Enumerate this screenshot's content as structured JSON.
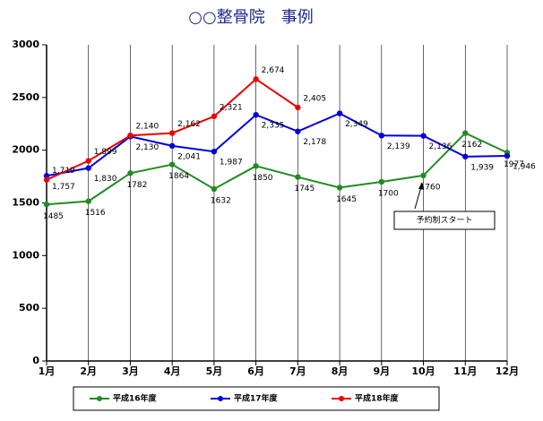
{
  "chart_data": {
    "type": "line",
    "title": "○○整骨院　事例",
    "categories": [
      "1月",
      "2月",
      "3月",
      "4月",
      "5月",
      "6月",
      "7月",
      "8月",
      "9月",
      "10月",
      "11月",
      "12月"
    ],
    "series": [
      {
        "name": "平成16年度",
        "color": "#228b22",
        "values": [
          1485,
          1516,
          1782,
          1864,
          1632,
          1850,
          1745,
          1645,
          1700,
          1760,
          2162,
          1977
        ]
      },
      {
        "name": "平成17年度",
        "color": "#0000dd",
        "values": [
          1757,
          1830,
          2130,
          2041,
          1987,
          2335,
          2178,
          2349,
          2139,
          2136,
          1939,
          1946
        ],
        "value_labels": [
          "1,757",
          "1,830",
          "2,130",
          "2,041",
          "1,987",
          "2,335",
          "2,178",
          "2,349",
          "2,139",
          "2,136",
          "1,939",
          "1,946"
        ]
      },
      {
        "name": "平成18年度",
        "color": "#ee0000",
        "values": [
          1719,
          1899,
          2140,
          2162,
          2321,
          2674,
          2405,
          null,
          null,
          null,
          null,
          null
        ],
        "value_labels": [
          "1,719",
          "1,899",
          "2,140",
          "2,162",
          "2,321",
          "2,674",
          "2,405",
          null,
          null,
          null,
          null,
          null
        ]
      }
    ],
    "ylim": [
      0,
      3000
    ],
    "yticks": [
      0,
      500,
      1000,
      1500,
      2000,
      2500,
      3000
    ],
    "xgrid": true,
    "annotation": "予約制スタート"
  }
}
